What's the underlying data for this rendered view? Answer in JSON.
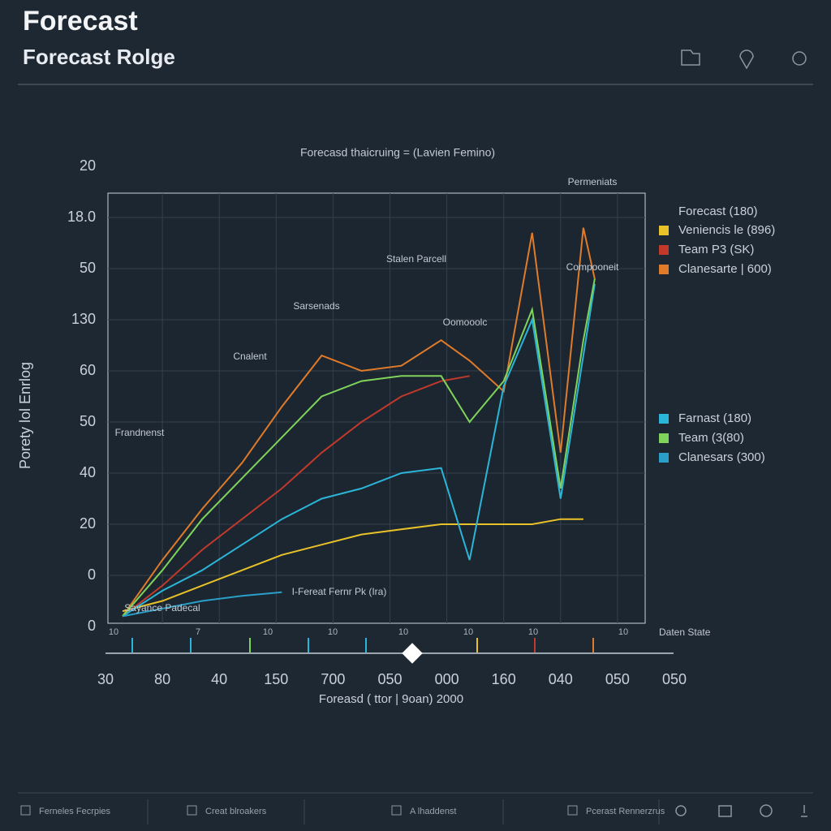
{
  "header": {
    "title": "Forecast",
    "subtitle": "Forecast Rolge"
  },
  "chart_data": {
    "type": "line",
    "title": "Forecasd thaicruing = (Lavien Femino)",
    "x_label": "Foreasd ( ttor | 9oan) 2000",
    "y_label": "Porety lol Enrlog",
    "x_end_label": "Daten State",
    "legend_title": "Forecast (180)",
    "x": [
      0.3,
      1,
      1.7,
      2.4,
      3.1,
      3.8,
      4.5,
      5.2,
      5.9,
      6.4,
      7,
      7.5,
      8,
      8.4,
      8.6
    ],
    "xlim": [
      0,
      10
    ],
    "xticks": [
      {
        "value": 0,
        "label": "30"
      },
      {
        "value": 1,
        "label": "80"
      },
      {
        "value": 2,
        "label": "40"
      },
      {
        "value": 3,
        "label": "150"
      },
      {
        "value": 4,
        "label": "700"
      },
      {
        "value": 5,
        "label": "050"
      },
      {
        "value": 6,
        "label": "000"
      },
      {
        "value": 7,
        "label": "160"
      },
      {
        "value": 8,
        "label": "040"
      },
      {
        "value": 9,
        "label": "050"
      },
      {
        "value": 10,
        "label": "050"
      }
    ],
    "x_minor_labels": [
      "10",
      "7",
      "10",
      "10",
      "10",
      "10",
      "10",
      "10"
    ],
    "ylim": [
      0,
      9
    ],
    "yticks": [
      {
        "value": 0,
        "label": "0"
      },
      {
        "value": 1,
        "label": "0"
      },
      {
        "value": 2,
        "label": "20"
      },
      {
        "value": 3,
        "label": "40"
      },
      {
        "value": 4,
        "label": "50"
      },
      {
        "value": 5,
        "label": "60"
      },
      {
        "value": 6,
        "label": "130"
      },
      {
        "value": 7,
        "label": "50"
      },
      {
        "value": 8,
        "label": "18.0"
      },
      {
        "value": 9,
        "label": "20"
      }
    ],
    "grid": true,
    "series": [
      {
        "name": "Veniencis le (896)",
        "color": "#e8c228",
        "values": [
          0.3,
          0.5,
          0.8,
          1.1,
          1.4,
          1.6,
          1.8,
          1.9,
          2.0,
          2.0,
          2.0,
          2.0,
          2.1,
          2.1,
          null
        ]
      },
      {
        "name": "Team P3 (SK)",
        "color": "#c0392b",
        "values": [
          0.2,
          0.8,
          1.5,
          2.1,
          2.7,
          3.4,
          4.0,
          4.5,
          4.8,
          4.9,
          null,
          null,
          null,
          null,
          null
        ]
      },
      {
        "name": "Clanesarte | 600)",
        "color": "#e07b2a",
        "values": [
          0.2,
          1.3,
          2.3,
          3.2,
          4.3,
          5.3,
          5.0,
          5.1,
          5.6,
          5.2,
          4.6,
          7.7,
          3.4,
          7.8,
          6.8
        ]
      },
      {
        "name": "Farnast (180)",
        "color": "#2bb5d8",
        "values": [
          0.2,
          0.7,
          1.1,
          1.6,
          2.1,
          2.5,
          2.7,
          3.0,
          3.1,
          1.3,
          4.7,
          6.0,
          2.5,
          5.3,
          6.7
        ]
      },
      {
        "name": "Team (3(80)",
        "color": "#7fd35a",
        "values": [
          0.2,
          1.1,
          2.1,
          2.9,
          3.7,
          4.5,
          4.8,
          4.9,
          4.9,
          4.0,
          4.8,
          6.2,
          2.7,
          5.6,
          6.8
        ]
      },
      {
        "name": "Clanesars (300)",
        "color": "#2a9fc8",
        "values": [
          0.2,
          0.35,
          0.5,
          0.6,
          0.67,
          null,
          null,
          null,
          null,
          null,
          null,
          null,
          null,
          null,
          null
        ]
      }
    ],
    "annotations": [
      "Permeniats",
      "Stalen Parcell",
      "Sarsenads",
      "Oomooolc",
      "Cnalent",
      "Frandnenst",
      "Compooneit",
      "I-Fereat Fernr Pk (Ira)",
      "Sayance Padecal"
    ]
  },
  "footer": {
    "items": [
      "Ferneles Fecrpies",
      "Creat blroakers",
      "A lhaddenst",
      "Pcerast Rennerzrus"
    ]
  }
}
